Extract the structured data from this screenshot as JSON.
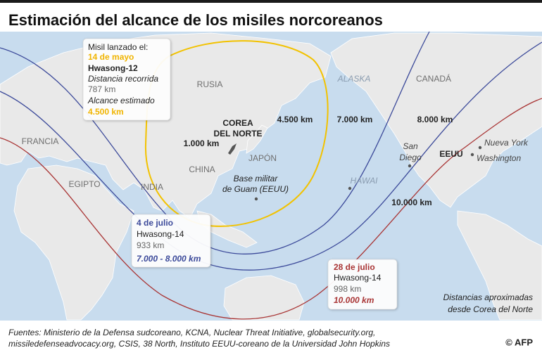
{
  "title": "Estimación del alcance de los misiles norcoreanos",
  "callouts": [
    {
      "intro": "Misil lanzado el:",
      "date": "14 de mayo",
      "missile": "Hwasong-12",
      "distance_label": "Distancia recorrida",
      "distance": "787 km",
      "range_label": "Alcance estimado",
      "range": "4.500 km"
    },
    {
      "date": "4 de julio",
      "missile": "Hwasong-14",
      "distance": "933 km",
      "range": "7.000 - 8.000 km"
    },
    {
      "date": "28 de julio",
      "missile": "Hwasong-14",
      "distance": "998 km",
      "range": "10.000 km"
    }
  ],
  "regions": [
    "RUSIA",
    "ALASKA",
    "CANADÁ",
    "FRANCIA",
    "EGIPTO",
    "INDIA",
    "CHINA",
    "JAPÓN",
    "HAWAI",
    "EEUU"
  ],
  "korea": [
    "COREA",
    "DEL NORTE"
  ],
  "guam": [
    "Base militar",
    "de Guam (EEUU)"
  ],
  "cities": {
    "san_diego": [
      "San",
      "Diego"
    ],
    "new_york": "Nueva York",
    "washington": "Washington"
  },
  "range_labels": [
    "1.000 km",
    "4.500 km",
    "7.000 km",
    "8.000 km",
    "10.000 km"
  ],
  "note": [
    "Distancias aproximadas",
    "desde Corea del Norte"
  ],
  "sources": [
    "Fuentes: Ministerio de la Defensa sudcoreano, KCNA, Nuclear Threat Initiative, globalsecurity.org,",
    "missiledefenseadvocacy.org, CSIS, 38 North, Instituto EEUU-coreano de la Universidad John Hopkins"
  ],
  "credit": "© AFP"
}
